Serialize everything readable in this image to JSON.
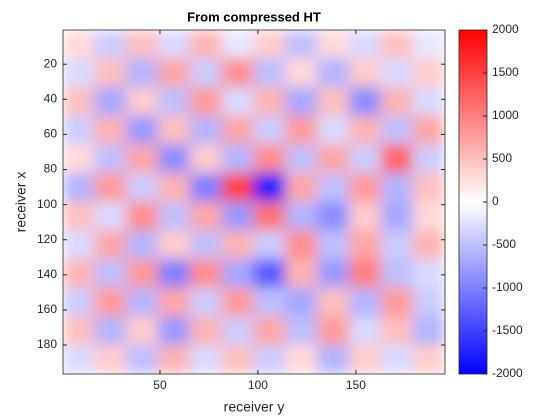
{
  "chart_data": {
    "type": "heatmap",
    "title": "From compressed HT",
    "xlabel": "receiver y",
    "ylabel": "receiver x",
    "xlim": [
      0.5,
      195.5
    ],
    "ylim": [
      0.5,
      196.5
    ],
    "xticks": [
      50,
      100,
      150
    ],
    "yticks": [
      20,
      40,
      60,
      80,
      100,
      120,
      140,
      160,
      180
    ],
    "clim": [
      -2000,
      2000
    ],
    "cticks": [
      -2000,
      -1500,
      -1000,
      -500,
      0,
      500,
      1000,
      1500,
      2000
    ],
    "colormap": [
      "#0000ff",
      "#ffffff",
      "#ff0000"
    ],
    "z": [
      [
        300,
        -400,
        500,
        -300,
        600,
        -200,
        400,
        -500,
        300,
        -300,
        500,
        -200
      ],
      [
        -300,
        500,
        -600,
        700,
        -400,
        900,
        -500,
        300,
        -600,
        400,
        -300,
        400
      ],
      [
        500,
        -700,
        400,
        -500,
        800,
        -300,
        600,
        -700,
        500,
        -900,
        600,
        -300
      ],
      [
        -400,
        600,
        -800,
        500,
        -600,
        700,
        -400,
        800,
        -300,
        600,
        -500,
        700
      ],
      [
        300,
        -500,
        700,
        -900,
        400,
        -600,
        900,
        -500,
        700,
        -400,
        1200,
        -400
      ],
      [
        -600,
        800,
        -400,
        600,
        -1000,
        1500,
        -1800,
        700,
        -500,
        800,
        -600,
        500
      ],
      [
        500,
        -300,
        900,
        -500,
        700,
        -800,
        1100,
        -600,
        -900,
        400,
        -700,
        300
      ],
      [
        -300,
        700,
        -600,
        400,
        -500,
        600,
        -400,
        900,
        -500,
        700,
        -400,
        600
      ],
      [
        600,
        -500,
        800,
        -1000,
        900,
        -700,
        -1300,
        600,
        -800,
        1000,
        -500,
        -300
      ],
      [
        -400,
        800,
        -600,
        700,
        -400,
        800,
        -500,
        -700,
        500,
        -600,
        800,
        -400
      ],
      [
        500,
        -600,
        400,
        -800,
        600,
        -400,
        700,
        -500,
        800,
        -300,
        500,
        -600
      ],
      [
        -300,
        400,
        -500,
        600,
        -300,
        500,
        -400,
        300,
        -600,
        400,
        -300,
        400
      ]
    ]
  }
}
